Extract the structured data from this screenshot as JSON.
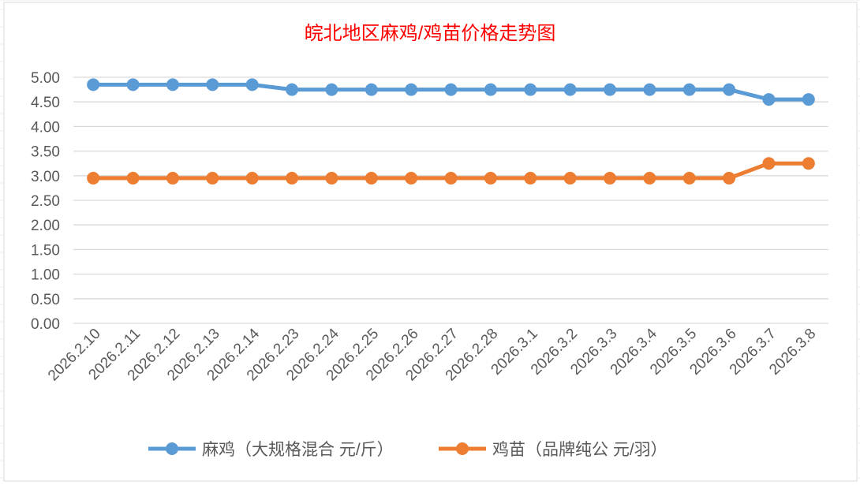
{
  "chart_data": {
    "type": "line",
    "title": "皖北地区麻鸡/鸡苗价格走势图",
    "xlabel": "",
    "ylabel": "",
    "ylim": [
      0,
      5
    ],
    "ytick_labels": [
      "0.00",
      "0.50",
      "1.00",
      "1.50",
      "2.00",
      "2.50",
      "3.00",
      "3.50",
      "4.00",
      "4.50",
      "5.00"
    ],
    "grid": true,
    "legend_position": "bottom",
    "categories": [
      "2026.2.10",
      "2026.2.11",
      "2026.2.12",
      "2026.2.13",
      "2026.2.14",
      "2026.2.23",
      "2026.2.24",
      "2026.2.25",
      "2026.2.26",
      "2026.2.27",
      "2026.2.28",
      "2026.3.1",
      "2026.3.2",
      "2026.3.3",
      "2026.3.4",
      "2026.3.5",
      "2026.3.6",
      "2026.3.7",
      "2026.3.8"
    ],
    "series": [
      {
        "name": "麻鸡（大规格混合 元/斤）",
        "color": "#5B9BD5",
        "values": [
          4.85,
          4.85,
          4.85,
          4.85,
          4.85,
          4.75,
          4.75,
          4.75,
          4.75,
          4.75,
          4.75,
          4.75,
          4.75,
          4.75,
          4.75,
          4.75,
          4.75,
          4.55,
          4.55
        ]
      },
      {
        "name": "鸡苗（品牌纯公 元/羽）",
        "color": "#ED7D31",
        "values": [
          2.95,
          2.95,
          2.95,
          2.95,
          2.95,
          2.95,
          2.95,
          2.95,
          2.95,
          2.95,
          2.95,
          2.95,
          2.95,
          2.95,
          2.95,
          2.95,
          2.95,
          3.25,
          3.25
        ]
      }
    ]
  },
  "colors": {
    "title": "#FF0000",
    "grid": "#D9D9D9",
    "axis_text": "#595959"
  }
}
